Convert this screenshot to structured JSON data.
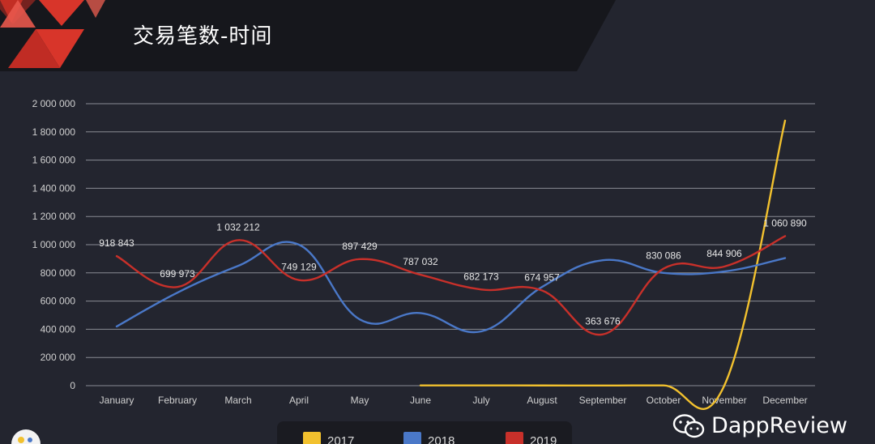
{
  "header": {
    "title": "交易笔数-时间"
  },
  "watermark": {
    "text": "DappReview"
  },
  "colors": {
    "background": "#23252f",
    "header_band": "#16171c",
    "accent_red": "#d8352a",
    "grid": "#8a8c94",
    "axis_text": "#d0d0d0"
  },
  "chart_data": {
    "type": "line",
    "title": "交易笔数-时间",
    "xlabel": "",
    "ylabel": "",
    "categories": [
      "January",
      "February",
      "March",
      "April",
      "May",
      "June",
      "July",
      "August",
      "September",
      "October",
      "November",
      "December"
    ],
    "y_ticks": [
      "0",
      "200 000",
      "400 000",
      "600 000",
      "800 000",
      "1 000 000",
      "1 200 000",
      "1 400 000",
      "1 600 000",
      "1 800 000",
      "2 000 000"
    ],
    "ylim": [
      0,
      2000000
    ],
    "grid": true,
    "legend_position": "bottom",
    "series": [
      {
        "name": "2017",
        "color": "#f2c12e",
        "values": [
          null,
          null,
          null,
          null,
          null,
          2000,
          2000,
          1500,
          1000,
          2000,
          1000,
          1880000
        ],
        "labels": []
      },
      {
        "name": "2018",
        "color": "#4a78c8",
        "values": [
          420000,
          660000,
          850000,
          1000000,
          470000,
          515000,
          385000,
          700000,
          890000,
          800000,
          810000,
          905000
        ],
        "labels": []
      },
      {
        "name": "2019",
        "color": "#c8302a",
        "values": [
          918843,
          699973,
          1032212,
          749129,
          897429,
          787032,
          682173,
          674957,
          363676,
          830086,
          844906,
          1060890
        ],
        "labels": [
          "918 843",
          "699 973",
          "1 032 212",
          "749 129",
          "897 429",
          "787 032",
          "682 173",
          "674 957",
          "363 676",
          "830 086",
          "844 906",
          "1 060 890"
        ]
      }
    ]
  }
}
